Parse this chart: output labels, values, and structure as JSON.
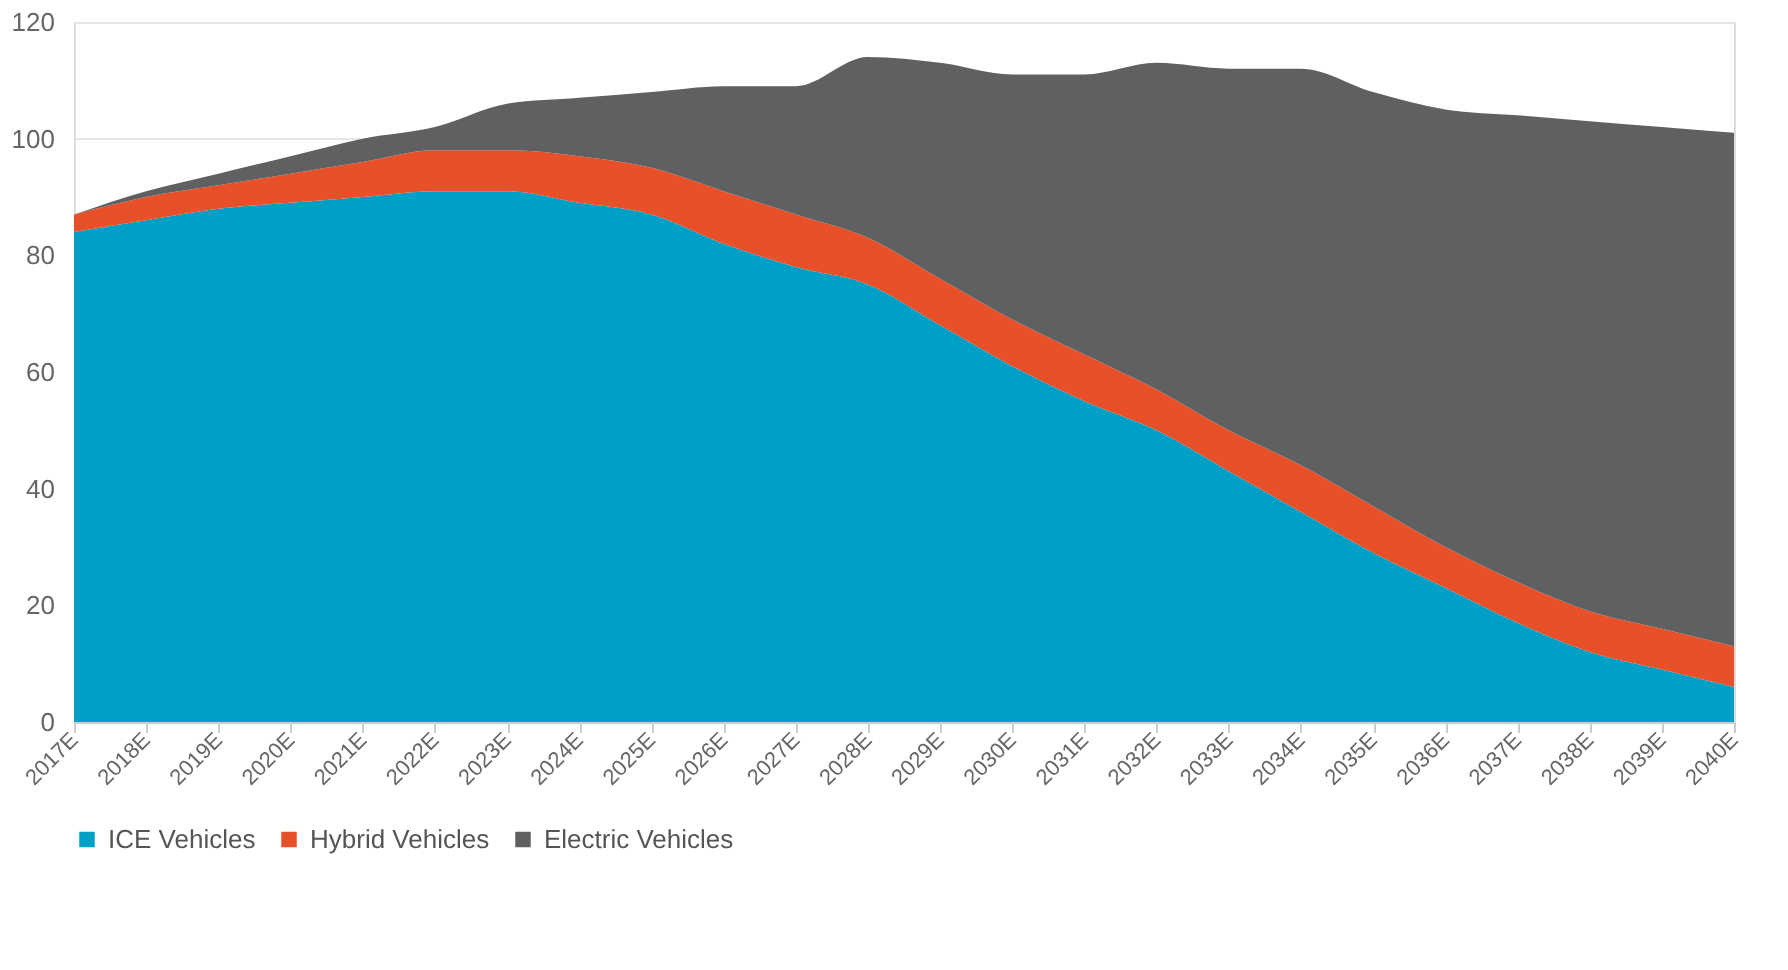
{
  "chart_data": {
    "type": "area",
    "stacked": true,
    "categories": [
      "2017E",
      "2018E",
      "2019E",
      "2020E",
      "2021E",
      "2022E",
      "2023E",
      "2024E",
      "2025E",
      "2026E",
      "2027E",
      "2028E",
      "2029E",
      "2030E",
      "2031E",
      "2032E",
      "2033E",
      "2034E",
      "2035E",
      "2036E",
      "2037E",
      "2038E",
      "2039E",
      "2040E"
    ],
    "series": [
      {
        "name": "ICE Vehicles",
        "color": "#00a0c6",
        "values": [
          84,
          86,
          88,
          89,
          90,
          91,
          91,
          89,
          87,
          82,
          78,
          75,
          68,
          61,
          55,
          50,
          43,
          36,
          29,
          23,
          17,
          12,
          9,
          6
        ]
      },
      {
        "name": "Hybrid Vehicles",
        "color": "#e8502a",
        "values": [
          3,
          4,
          4,
          5,
          6,
          7,
          7,
          8,
          8,
          9,
          9,
          8,
          8,
          8,
          8,
          7,
          7,
          8,
          8,
          7,
          7,
          7,
          7,
          7
        ]
      },
      {
        "name": "Electric Vehicles",
        "color": "#5f6062",
        "values": [
          0,
          1,
          2,
          3,
          4,
          4,
          8,
          10,
          13,
          18,
          22,
          31,
          37,
          42,
          48,
          56,
          62,
          68,
          71,
          75,
          80,
          84,
          86,
          88
        ]
      }
    ],
    "ylim": [
      0,
      120
    ],
    "yticks": [
      0,
      20,
      40,
      60,
      80,
      100,
      120
    ],
    "grid": "y",
    "legend": "bottom"
  }
}
